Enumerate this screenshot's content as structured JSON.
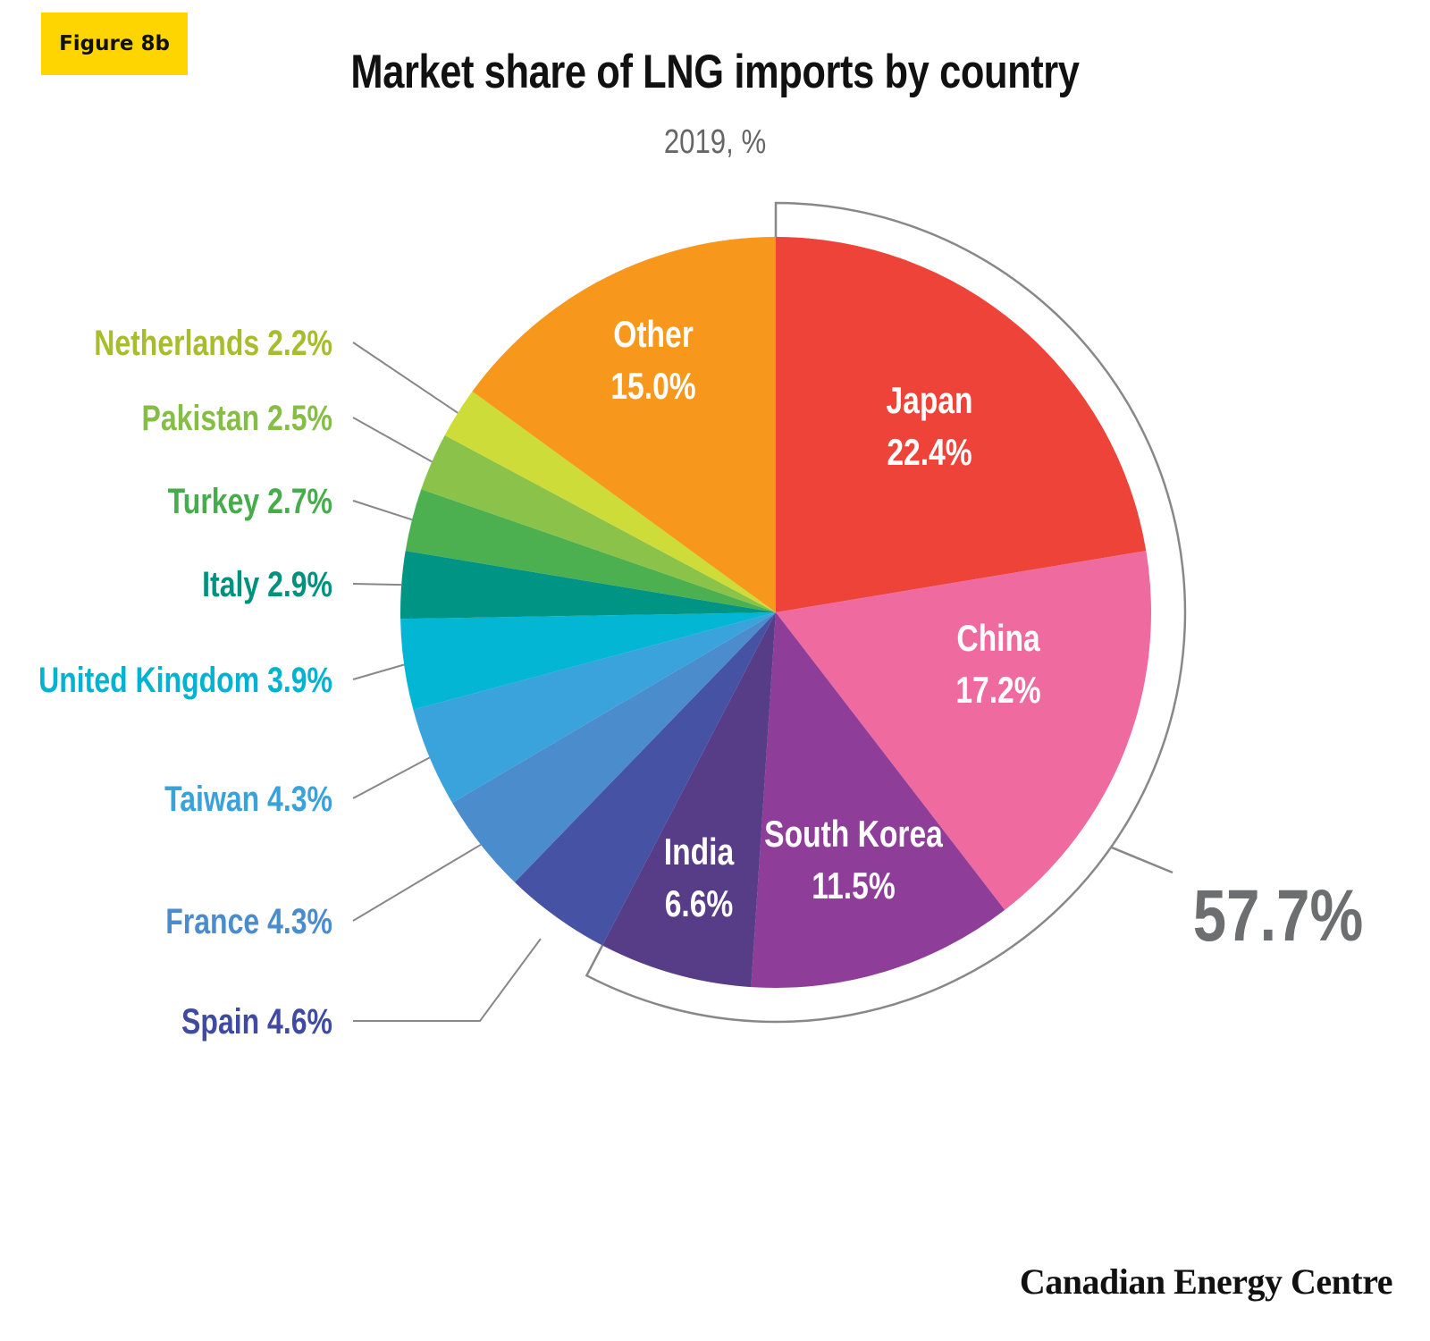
{
  "badge": "Figure 8b",
  "title": "Market share of LNG imports by country",
  "subtitle": "2019, %",
  "source": "Canadian Energy Centre",
  "chart_data": {
    "type": "pie",
    "title": "Market share of LNG imports by country",
    "subtitle": "2019, %",
    "unit": "%",
    "slices": [
      {
        "label": "Japan",
        "value": 22.4,
        "display": "22.4%",
        "color": "#ee4338",
        "label_mode": "inside"
      },
      {
        "label": "China",
        "value": 17.2,
        "display": "17.2%",
        "color": "#ef6a9f",
        "label_mode": "inside"
      },
      {
        "label": "South Korea",
        "value": 11.5,
        "display": "11.5%",
        "color": "#8e3d98",
        "label_mode": "inside"
      },
      {
        "label": "India",
        "value": 6.6,
        "display": "6.6%",
        "color": "#573c87",
        "label_mode": "inside"
      },
      {
        "label": "Spain",
        "value": 4.6,
        "display": "4.6%",
        "color": "#4652a3",
        "label_mode": "outside"
      },
      {
        "label": "France",
        "value": 4.3,
        "display": "4.3%",
        "color": "#4b8dcc",
        "label_mode": "outside"
      },
      {
        "label": "Taiwan",
        "value": 4.3,
        "display": "4.3%",
        "color": "#3ba3dc",
        "label_mode": "outside"
      },
      {
        "label": "United Kingdom",
        "value": 3.9,
        "display": "3.9%",
        "color": "#02b6d4",
        "label_mode": "outside"
      },
      {
        "label": "Italy",
        "value": 2.9,
        "display": "2.9%",
        "color": "#009485",
        "label_mode": "outside"
      },
      {
        "label": "Turkey",
        "value": 2.7,
        "display": "2.7%",
        "color": "#4caf50",
        "label_mode": "outside"
      },
      {
        "label": "Pakistan",
        "value": 2.5,
        "display": "2.5%",
        "color": "#8bc34a",
        "label_mode": "outside"
      },
      {
        "label": "Netherlands",
        "value": 2.2,
        "display": "2.2%",
        "color": "#cddc39",
        "label_mode": "outside"
      },
      {
        "label": "Other",
        "value": 15.0,
        "display": "15.0%",
        "color": "#f7981d",
        "label_mode": "inside"
      }
    ],
    "outside_label_colors": {
      "Spain": "#3f4aa0",
      "France": "#4a8ccc",
      "Taiwan": "#3aa2db",
      "United Kingdom": "#00b3d0",
      "Italy": "#00917f",
      "Turkey": "#47ac4b",
      "Pakistan": "#86bd47",
      "Netherlands": "#a9bc30"
    },
    "bracket": {
      "covers": [
        "Japan",
        "China",
        "South Korea",
        "India"
      ],
      "total": "57.7%"
    },
    "start": "12 o'clock",
    "direction": "clockwise"
  }
}
